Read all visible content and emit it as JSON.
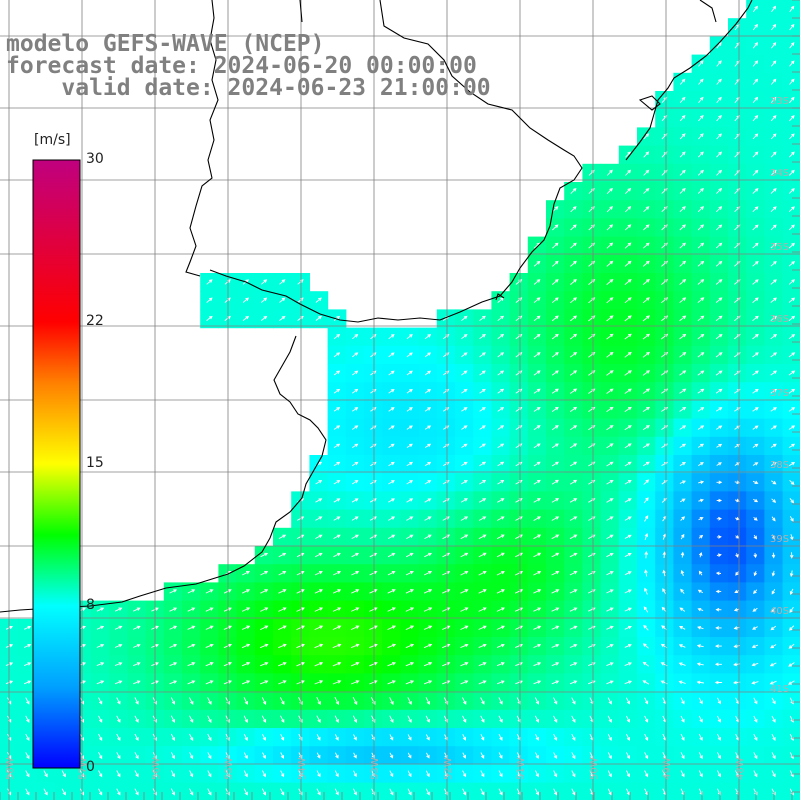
{
  "header": {
    "line1": "modelo GEFS-WAVE (NCEP)",
    "line2": "forecast date: 2024-06-20 00:00:00",
    "line3": "    valid date: 2024-06-23 21:00:00"
  },
  "colorbar": {
    "unit": "[m/s]",
    "ticks": [
      {
        "value": 30,
        "label": "30"
      },
      {
        "value": 22,
        "label": "22"
      },
      {
        "value": 15,
        "label": "15"
      },
      {
        "value": 8,
        "label": "8"
      },
      {
        "value": 0,
        "label": "0"
      }
    ],
    "min": 0,
    "max": 30,
    "colors": [
      "#0000ff",
      "#00a0ff",
      "#00ffff",
      "#00ff00",
      "#ffff00",
      "#ff8000",
      "#ff0000",
      "#c0007f"
    ]
  },
  "map": {
    "lat_labels": [
      "33S",
      "34S",
      "35S",
      "36S",
      "37S",
      "38S",
      "39S",
      "40S",
      "41S"
    ],
    "lon_labels": [
      "58W",
      "57W",
      "56W",
      "55W",
      "54W",
      "53W",
      "52W",
      "51W",
      "50W",
      "49W",
      "48W"
    ],
    "land_color": "#ffffff",
    "grid_color": "#808080"
  }
}
